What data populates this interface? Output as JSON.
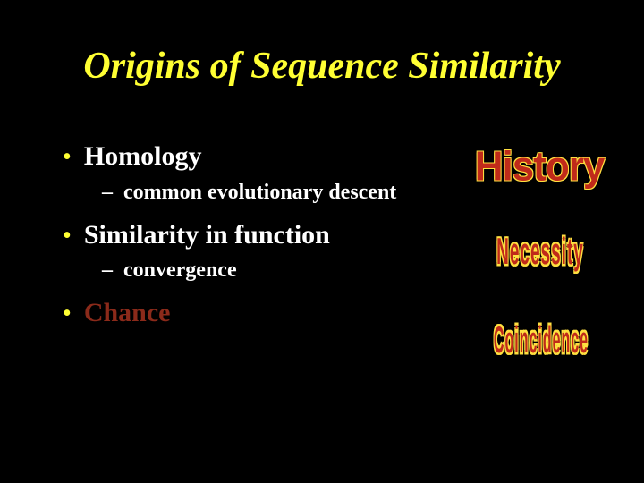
{
  "title": "Origins of Sequence Similarity",
  "colors": {
    "background": "#000000",
    "title": "#ffff33",
    "bullet_dot": "#ffff33",
    "text_white": "#ffffff",
    "text_dim_red": "#8b2a1a",
    "wordart_fill": "#c02a1a",
    "wordart_outline": "#ffe040"
  },
  "typography": {
    "title_family": "Times New Roman",
    "title_size_pt": 32,
    "title_style": "bold italic",
    "bullet_size_pt": 22,
    "sub_size_pt": 18,
    "wordart_family": "Arial"
  },
  "bullets": [
    {
      "text": "Homology",
      "color_key": "text_white",
      "sub": {
        "text": "common evolutionary descent"
      }
    },
    {
      "text": "Similarity in function",
      "color_key": "text_white",
      "sub": {
        "text": "convergence"
      }
    },
    {
      "text": "Chance",
      "color_key": "text_dim_red",
      "sub": null
    }
  ],
  "wordart": {
    "history": "History",
    "necessity": "Necessity",
    "coincidence": "Coincidence"
  }
}
